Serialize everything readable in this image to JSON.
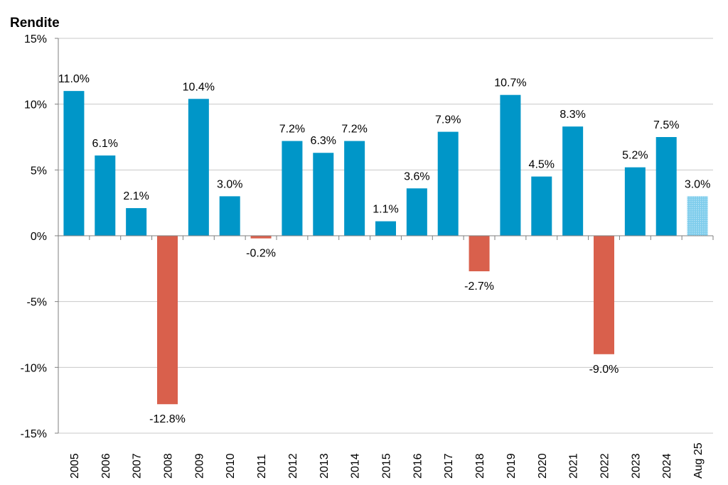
{
  "chart_data": {
    "type": "bar",
    "ylabel": "Rendite",
    "xlabel": "",
    "ylim": [
      -15,
      15
    ],
    "ytick_values": [
      -15,
      -10,
      -5,
      0,
      5,
      10,
      15
    ],
    "ytick_labels": [
      "-15%",
      "-10%",
      "-5%",
      "0%",
      "5%",
      "10%",
      "15%"
    ],
    "grid": true,
    "categories": [
      "2005",
      "2006",
      "2007",
      "2008",
      "2009",
      "2010",
      "2011",
      "2012",
      "2013",
      "2014",
      "2015",
      "2016",
      "2017",
      "2018",
      "2019",
      "2020",
      "2021",
      "2022",
      "2023",
      "2024",
      "Aug 25"
    ],
    "values": [
      11.0,
      6.1,
      2.1,
      -12.8,
      10.4,
      3.0,
      -0.2,
      7.2,
      6.3,
      7.2,
      1.1,
      3.6,
      7.9,
      -2.7,
      10.7,
      4.5,
      8.3,
      -9.0,
      5.2,
      7.5,
      3.0
    ],
    "data_labels": [
      "11.0%",
      "6.1%",
      "2.1%",
      "-12.8%",
      "10.4%",
      "3.0%",
      "-0.2%",
      "7.2%",
      "6.3%",
      "7.2%",
      "1.1%",
      "3.6%",
      "7.9%",
      "-2.7%",
      "10.7%",
      "4.5%",
      "8.3%",
      "-9.0%",
      "5.2%",
      "7.5%",
      "3.0%"
    ],
    "partial_period": [
      "Aug 25"
    ],
    "colors": {
      "positive": "#0096c8",
      "negative": "#d9604c",
      "partial": "#8fd3ee",
      "grid": "#c8c8c8",
      "axis": "#7f7f7f"
    }
  }
}
